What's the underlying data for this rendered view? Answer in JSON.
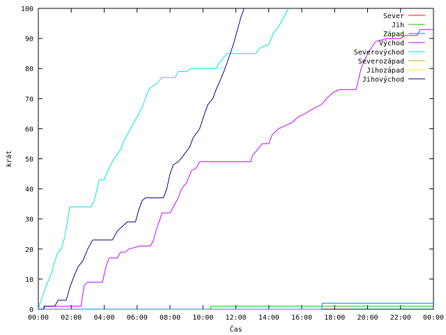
{
  "chart_data": {
    "type": "line",
    "xlabel": "Čas",
    "ylabel": "krát",
    "xlim": [
      0,
      24
    ],
    "ylim": [
      0,
      100
    ],
    "x_ticks": [
      {
        "value": 0,
        "label": "00:00"
      },
      {
        "value": 2,
        "label": "02:00"
      },
      {
        "value": 4,
        "label": "04:00"
      },
      {
        "value": 6,
        "label": "06:00"
      },
      {
        "value": 8,
        "label": "08:00"
      },
      {
        "value": 10,
        "label": "10:00"
      },
      {
        "value": 12,
        "label": "12:00"
      },
      {
        "value": 14,
        "label": "14:00"
      },
      {
        "value": 16,
        "label": "16:00"
      },
      {
        "value": 18,
        "label": "18:00"
      },
      {
        "value": 20,
        "label": "20:00"
      },
      {
        "value": 22,
        "label": "22:00"
      },
      {
        "value": 24,
        "label": "00:00"
      }
    ],
    "y_ticks": [
      0,
      10,
      20,
      30,
      40,
      50,
      60,
      70,
      80,
      90,
      100
    ],
    "grid": false,
    "legend_position": "top-right",
    "series": [
      {
        "name": "Sever",
        "color": "#ff0000",
        "points": []
      },
      {
        "name": "Jih",
        "color": "#00c000",
        "points": [
          [
            0,
            0
          ],
          [
            10.45,
            0
          ],
          [
            10.5,
            1
          ],
          [
            24,
            1
          ]
        ]
      },
      {
        "name": "Západ",
        "color": "#0080ff",
        "points": [
          [
            0,
            0
          ],
          [
            17.2,
            0
          ],
          [
            17.25,
            2
          ],
          [
            24,
            2
          ]
        ]
      },
      {
        "name": "Východ",
        "color": "#c000ff",
        "points": [
          [
            0,
            0
          ],
          [
            0.3,
            0
          ],
          [
            0.35,
            1
          ],
          [
            2.6,
            1
          ],
          [
            2.7,
            5
          ],
          [
            2.8,
            8
          ],
          [
            3.0,
            9
          ],
          [
            3.9,
            9
          ],
          [
            4.1,
            14
          ],
          [
            4.3,
            17
          ],
          [
            4.8,
            17
          ],
          [
            5.0,
            19
          ],
          [
            5.3,
            19
          ],
          [
            5.5,
            20
          ],
          [
            6.2,
            21
          ],
          [
            6.8,
            21
          ],
          [
            7.0,
            23
          ],
          [
            7.2,
            27
          ],
          [
            7.4,
            30
          ],
          [
            7.5,
            32
          ],
          [
            8.0,
            32
          ],
          [
            8.2,
            34
          ],
          [
            8.5,
            37
          ],
          [
            8.7,
            40
          ],
          [
            9.0,
            42
          ],
          [
            9.3,
            46
          ],
          [
            9.6,
            47
          ],
          [
            9.8,
            49
          ],
          [
            12.9,
            49
          ],
          [
            13.0,
            51
          ],
          [
            13.3,
            53
          ],
          [
            13.6,
            55
          ],
          [
            14.0,
            55
          ],
          [
            14.2,
            58
          ],
          [
            14.6,
            60
          ],
          [
            15.0,
            61
          ],
          [
            15.4,
            62
          ],
          [
            15.8,
            64
          ],
          [
            16.2,
            65
          ],
          [
            16.8,
            67
          ],
          [
            17.2,
            68
          ],
          [
            17.5,
            70
          ],
          [
            17.9,
            72
          ],
          [
            18.3,
            73
          ],
          [
            19.3,
            73
          ],
          [
            19.6,
            80
          ],
          [
            20.0,
            85
          ],
          [
            20.5,
            89
          ],
          [
            21.2,
            90
          ],
          [
            22.0,
            90
          ],
          [
            22.3,
            91
          ],
          [
            23.0,
            91
          ],
          [
            23.2,
            93
          ],
          [
            24,
            93
          ]
        ]
      },
      {
        "name": "Severovýchod",
        "color": "#00e0e0",
        "points": [
          [
            0,
            0
          ],
          [
            0.1,
            2
          ],
          [
            0.3,
            5
          ],
          [
            0.5,
            8
          ],
          [
            0.8,
            12
          ],
          [
            1.0,
            16
          ],
          [
            1.2,
            19
          ],
          [
            1.4,
            20
          ],
          [
            1.6,
            24
          ],
          [
            1.8,
            30
          ],
          [
            1.9,
            34
          ],
          [
            3.2,
            34
          ],
          [
            3.4,
            36
          ],
          [
            3.7,
            43
          ],
          [
            4.0,
            43
          ],
          [
            4.3,
            47
          ],
          [
            4.6,
            50
          ],
          [
            5.0,
            53
          ],
          [
            5.2,
            56
          ],
          [
            5.6,
            60
          ],
          [
            6.0,
            64
          ],
          [
            6.3,
            67
          ],
          [
            6.5,
            70
          ],
          [
            6.7,
            73
          ],
          [
            6.9,
            74
          ],
          [
            7.2,
            75
          ],
          [
            7.5,
            77
          ],
          [
            8.3,
            77
          ],
          [
            8.5,
            79
          ],
          [
            9.0,
            79
          ],
          [
            9.3,
            80
          ],
          [
            10.8,
            80
          ],
          [
            11.0,
            82
          ],
          [
            11.3,
            84
          ],
          [
            11.5,
            85
          ],
          [
            13.2,
            85
          ],
          [
            13.5,
            87
          ],
          [
            14.0,
            88
          ],
          [
            14.3,
            92
          ],
          [
            14.6,
            94
          ],
          [
            14.9,
            97
          ],
          [
            15.1,
            99
          ],
          [
            15.2,
            100
          ]
        ]
      },
      {
        "name": "Severozápad",
        "color": "#c0a000",
        "points": []
      },
      {
        "name": "Jihozápad",
        "color": "#ffe000",
        "points": []
      },
      {
        "name": "Jihovýchod",
        "color": "#000080",
        "points": [
          [
            0,
            0
          ],
          [
            0.3,
            0
          ],
          [
            0.4,
            1
          ],
          [
            1.0,
            1
          ],
          [
            1.2,
            3
          ],
          [
            1.7,
            3
          ],
          [
            1.9,
            7
          ],
          [
            2.1,
            10
          ],
          [
            2.4,
            14
          ],
          [
            2.7,
            16
          ],
          [
            3.0,
            20
          ],
          [
            3.3,
            23
          ],
          [
            4.5,
            23
          ],
          [
            4.8,
            26
          ],
          [
            5.0,
            27
          ],
          [
            5.4,
            29
          ],
          [
            5.9,
            29
          ],
          [
            6.1,
            33
          ],
          [
            6.3,
            36
          ],
          [
            6.5,
            37
          ],
          [
            7.6,
            37
          ],
          [
            7.8,
            40
          ],
          [
            8.0,
            45
          ],
          [
            8.2,
            48
          ],
          [
            8.5,
            49
          ],
          [
            8.8,
            51
          ],
          [
            9.2,
            54
          ],
          [
            9.4,
            57
          ],
          [
            9.8,
            60
          ],
          [
            10.1,
            65
          ],
          [
            10.3,
            68
          ],
          [
            10.6,
            70
          ],
          [
            10.8,
            73
          ],
          [
            11.2,
            78
          ],
          [
            11.6,
            84
          ],
          [
            11.9,
            89
          ],
          [
            12.1,
            93
          ],
          [
            12.3,
            97
          ],
          [
            12.5,
            100
          ]
        ]
      }
    ]
  }
}
